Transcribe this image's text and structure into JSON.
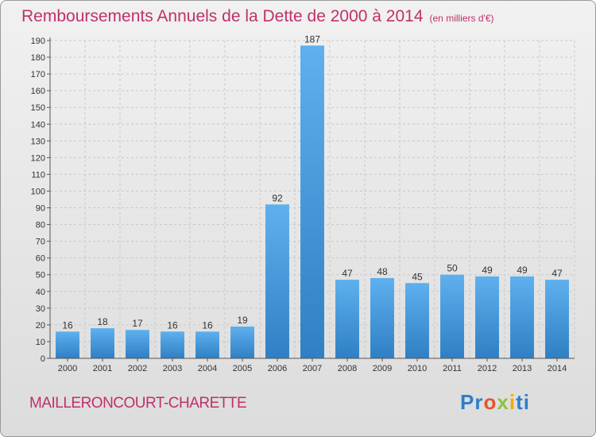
{
  "title": "Remboursements Annuels de la Dette de 2000 à 2014",
  "unit": "(en milliers d'€)",
  "town": "MAILLERONCOURT-CHARETTE",
  "logo": {
    "p1": "Pr",
    "p2": "o",
    "p3": "x",
    "p4": "i",
    "p5": "ti"
  },
  "colors": {
    "bar": "#4a9ee0",
    "title": "#c0306a"
  },
  "chart_data": {
    "type": "bar",
    "categories": [
      "2000",
      "2001",
      "2002",
      "2003",
      "2004",
      "2005",
      "2006",
      "2007",
      "2008",
      "2009",
      "2010",
      "2011",
      "2012",
      "2013",
      "2014"
    ],
    "values": [
      16,
      18,
      17,
      16,
      16,
      19,
      92,
      187,
      47,
      48,
      45,
      50,
      49,
      49,
      47
    ],
    "ylim": [
      0,
      190
    ],
    "yticks": [
      0,
      10,
      20,
      30,
      40,
      50,
      60,
      70,
      80,
      90,
      100,
      110,
      120,
      130,
      140,
      150,
      160,
      170,
      180,
      190
    ],
    "grid": true
  }
}
